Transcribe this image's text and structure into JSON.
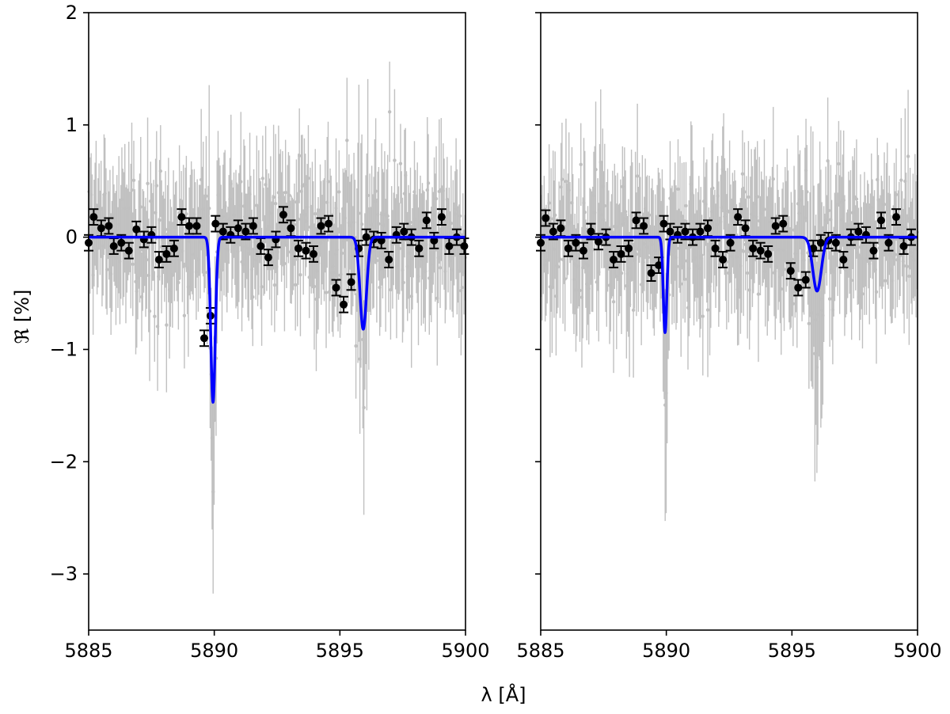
{
  "figure": {
    "xlabel": "λ [Å]",
    "ylabel": "ℜ [%]"
  },
  "chart_data": [
    {
      "type": "scatter",
      "xlim": [
        5885,
        5900
      ],
      "ylim": [
        -3.5,
        2
      ],
      "xticks": [
        5885,
        5890,
        5895,
        5900
      ],
      "xtick_labels": [
        "5885",
        "5890",
        "5895",
        "5900"
      ],
      "yticks": [
        -3,
        -2,
        -1,
        0,
        1,
        2
      ],
      "ytick_labels": [
        "−3",
        "−2",
        "−1",
        "0",
        "1",
        "2"
      ],
      "grid": false,
      "fit": {
        "type": "gaussian_pair",
        "color": "#0000ff",
        "lines": [
          {
            "center": 5889.95,
            "depth": -1.47,
            "sigma": 0.09
          },
          {
            "center": 5895.93,
            "depth": -0.82,
            "sigma": 0.13
          }
        ]
      },
      "binned": {
        "color": "#000000",
        "yerr": 0.07,
        "x": [
          5885.0,
          5885.2,
          5885.5,
          5885.8,
          5886.0,
          5886.3,
          5886.6,
          5886.9,
          5887.2,
          5887.5,
          5887.8,
          5888.1,
          5888.4,
          5888.7,
          5889.0,
          5889.3,
          5889.6,
          5889.85,
          5890.05,
          5890.35,
          5890.65,
          5890.95,
          5891.25,
          5891.55,
          5891.85,
          5892.15,
          5892.45,
          5892.75,
          5893.05,
          5893.35,
          5893.65,
          5893.95,
          5894.25,
          5894.55,
          5894.85,
          5895.15,
          5895.45,
          5895.75,
          5896.05,
          5896.35,
          5896.65,
          5896.95,
          5897.25,
          5897.55,
          5897.85,
          5898.15,
          5898.45,
          5898.75,
          5899.05,
          5899.35,
          5899.65,
          5899.95
        ],
        "y": [
          -0.05,
          0.18,
          0.08,
          0.1,
          -0.08,
          -0.05,
          -0.12,
          0.07,
          -0.02,
          0.02,
          -0.2,
          -0.15,
          -0.1,
          0.18,
          0.1,
          0.1,
          -0.9,
          -0.7,
          0.12,
          0.05,
          0.02,
          0.08,
          0.05,
          0.1,
          -0.08,
          -0.18,
          -0.02,
          0.2,
          0.08,
          -0.1,
          -0.12,
          -0.15,
          0.1,
          0.12,
          -0.45,
          -0.6,
          -0.4,
          -0.1,
          0.0,
          -0.02,
          -0.03,
          -0.2,
          0.02,
          0.05,
          0.0,
          -0.1,
          0.15,
          -0.03,
          0.18,
          -0.08,
          0.0,
          -0.08
        ]
      },
      "unbinned": {
        "color": "#c0c0c0",
        "n": 380,
        "scatter_sigma": 0.28
      }
    },
    {
      "type": "scatter",
      "xlim": [
        5885,
        5900
      ],
      "ylim": [
        -3.5,
        2
      ],
      "xticks": [
        5885,
        5890,
        5895,
        5900
      ],
      "xtick_labels": [
        "5885",
        "5890",
        "5895",
        "5900"
      ],
      "yticks": [
        -3,
        -2,
        -1,
        0,
        1,
        2
      ],
      "ytick_labels": [],
      "grid": false,
      "fit": {
        "type": "gaussian_pair",
        "color": "#0000ff",
        "lines": [
          {
            "center": 5889.95,
            "depth": -0.85,
            "sigma": 0.07
          },
          {
            "center": 5896.0,
            "depth": -0.48,
            "sigma": 0.17
          }
        ]
      },
      "binned": {
        "color": "#000000",
        "yerr": 0.07,
        "x": [
          5885.0,
          5885.2,
          5885.5,
          5885.8,
          5886.1,
          5886.4,
          5886.7,
          5887.0,
          5887.3,
          5887.6,
          5887.9,
          5888.2,
          5888.5,
          5888.8,
          5889.1,
          5889.4,
          5889.7,
          5889.9,
          5890.15,
          5890.45,
          5890.75,
          5891.05,
          5891.35,
          5891.65,
          5891.95,
          5892.25,
          5892.55,
          5892.85,
          5893.15,
          5893.45,
          5893.75,
          5894.05,
          5894.35,
          5894.65,
          5894.95,
          5895.25,
          5895.55,
          5895.85,
          5896.15,
          5896.45,
          5896.75,
          5897.05,
          5897.35,
          5897.65,
          5897.95,
          5898.25,
          5898.55,
          5898.85,
          5899.15,
          5899.45,
          5899.75
        ],
        "y": [
          -0.05,
          0.17,
          0.05,
          0.08,
          -0.1,
          -0.05,
          -0.12,
          0.05,
          -0.04,
          0.0,
          -0.2,
          -0.15,
          -0.1,
          0.15,
          0.1,
          -0.32,
          -0.25,
          0.12,
          0.05,
          0.02,
          0.05,
          0.0,
          0.05,
          0.08,
          -0.1,
          -0.2,
          -0.05,
          0.18,
          0.08,
          -0.1,
          -0.12,
          -0.15,
          0.1,
          0.12,
          -0.3,
          -0.45,
          -0.38,
          -0.1,
          -0.05,
          -0.03,
          -0.05,
          -0.2,
          0.0,
          0.05,
          0.02,
          -0.12,
          0.15,
          -0.05,
          0.18,
          -0.08,
          0.0
        ]
      },
      "unbinned": {
        "color": "#c0c0c0",
        "n": 380,
        "scatter_sigma": 0.28
      }
    }
  ]
}
